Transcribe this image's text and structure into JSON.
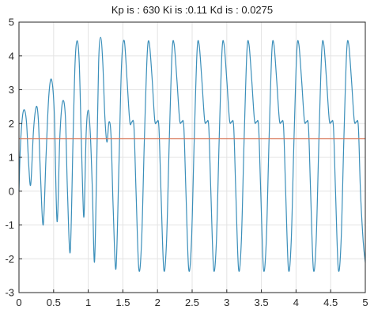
{
  "chart_data": {
    "type": "line",
    "title": "Kp is : 630 Ki is :0.11 Kd is : 0.0275",
    "xlabel": "",
    "ylabel": "",
    "xlim": [
      0,
      5
    ],
    "ylim": [
      -3,
      5
    ],
    "x_ticks": [
      0,
      0.5,
      1,
      1.5,
      2,
      2.5,
      3,
      3.5,
      4,
      4.5,
      5
    ],
    "x_tick_labels": [
      "0",
      "0.5",
      "1",
      "1.5",
      "2",
      "2.5",
      "3",
      "3.5",
      "4",
      "4.5",
      "5"
    ],
    "y_ticks": [
      -3,
      -2,
      -1,
      0,
      1,
      2,
      3,
      4,
      5
    ],
    "y_tick_labels": [
      "-3",
      "-2",
      "-1",
      "0",
      "1",
      "2",
      "3",
      "4",
      "5"
    ],
    "grid": true,
    "legend": "none",
    "series": [
      {
        "color": "#3b8fba",
        "points": [
          [
            0.0,
            0.0
          ],
          [
            0.02,
            1.3
          ],
          [
            0.05,
            2.2
          ],
          [
            0.08,
            2.4
          ],
          [
            0.11,
            2.0
          ],
          [
            0.14,
            0.8
          ],
          [
            0.17,
            0.2
          ],
          [
            0.21,
            1.8
          ],
          [
            0.25,
            2.5
          ],
          [
            0.28,
            2.1
          ],
          [
            0.31,
            0.5
          ],
          [
            0.35,
            -1.0
          ],
          [
            0.39,
            1.0
          ],
          [
            0.43,
            2.8
          ],
          [
            0.47,
            3.3
          ],
          [
            0.51,
            2.3
          ],
          [
            0.55,
            -0.9
          ],
          [
            0.59,
            1.6
          ],
          [
            0.63,
            2.65
          ],
          [
            0.67,
            2.2
          ],
          [
            0.7,
            0.0
          ],
          [
            0.74,
            -1.8
          ],
          [
            0.78,
            1.5
          ],
          [
            0.81,
            3.8
          ],
          [
            0.84,
            4.45
          ],
          [
            0.87,
            3.8
          ],
          [
            0.9,
            1.5
          ],
          [
            0.92,
            0.0
          ],
          [
            0.94,
            -0.7
          ],
          [
            0.97,
            1.7
          ],
          [
            1.0,
            2.4
          ],
          [
            1.03,
            1.7
          ],
          [
            1.06,
            0.0
          ],
          [
            1.09,
            -2.1
          ],
          [
            1.12,
            0.5
          ],
          [
            1.15,
            3.8
          ],
          [
            1.18,
            4.55
          ],
          [
            1.21,
            3.8
          ],
          [
            1.24,
            2.2
          ],
          [
            1.27,
            1.45
          ],
          [
            1.3,
            2.05
          ],
          [
            1.33,
            1.6
          ],
          [
            1.36,
            -0.5
          ],
          [
            1.4,
            -2.3
          ],
          [
            1.44,
            0.5
          ],
          [
            1.48,
            3.7
          ],
          [
            1.52,
            4.45
          ],
          [
            1.56,
            3.3
          ],
          [
            1.6,
            2.05
          ],
          [
            1.63,
            2.05
          ],
          [
            1.66,
            1.9
          ],
          [
            1.69,
            0.0
          ],
          [
            1.73,
            -2.3
          ],
          [
            1.77,
            -1.5
          ],
          [
            1.81,
            1.5
          ],
          [
            1.85,
            4.0
          ],
          [
            1.88,
            4.4
          ],
          [
            1.92,
            3.4
          ],
          [
            1.96,
            2.1
          ],
          [
            1.99,
            2.05
          ],
          [
            2.02,
            1.9
          ],
          [
            2.05,
            0.0
          ],
          [
            2.09,
            -2.3
          ],
          [
            2.13,
            -1.5
          ],
          [
            2.17,
            1.5
          ],
          [
            2.21,
            4.1
          ],
          [
            2.24,
            4.35
          ],
          [
            2.28,
            3.3
          ],
          [
            2.32,
            2.1
          ],
          [
            2.35,
            2.05
          ],
          [
            2.38,
            1.9
          ],
          [
            2.41,
            0.0
          ],
          [
            2.45,
            -2.3
          ],
          [
            2.49,
            -1.5
          ],
          [
            2.53,
            1.5
          ],
          [
            2.57,
            4.1
          ],
          [
            2.6,
            4.35
          ],
          [
            2.64,
            3.3
          ],
          [
            2.68,
            2.1
          ],
          [
            2.71,
            2.05
          ],
          [
            2.74,
            1.9
          ],
          [
            2.77,
            0.0
          ],
          [
            2.81,
            -2.3
          ],
          [
            2.85,
            -1.5
          ],
          [
            2.89,
            1.5
          ],
          [
            2.93,
            4.1
          ],
          [
            2.96,
            4.35
          ],
          [
            3.0,
            3.3
          ],
          [
            3.04,
            2.1
          ],
          [
            3.07,
            2.05
          ],
          [
            3.1,
            1.9
          ],
          [
            3.13,
            0.0
          ],
          [
            3.17,
            -2.3
          ],
          [
            3.21,
            -1.5
          ],
          [
            3.25,
            1.5
          ],
          [
            3.29,
            4.1
          ],
          [
            3.32,
            4.35
          ],
          [
            3.36,
            3.3
          ],
          [
            3.4,
            2.1
          ],
          [
            3.43,
            2.05
          ],
          [
            3.46,
            1.9
          ],
          [
            3.49,
            0.0
          ],
          [
            3.53,
            -2.3
          ],
          [
            3.57,
            -1.5
          ],
          [
            3.61,
            1.5
          ],
          [
            3.65,
            4.1
          ],
          [
            3.68,
            4.35
          ],
          [
            3.72,
            3.3
          ],
          [
            3.76,
            2.1
          ],
          [
            3.79,
            2.05
          ],
          [
            3.82,
            1.9
          ],
          [
            3.85,
            0.0
          ],
          [
            3.89,
            -2.3
          ],
          [
            3.93,
            -1.5
          ],
          [
            3.97,
            1.5
          ],
          [
            4.01,
            4.1
          ],
          [
            4.04,
            4.35
          ],
          [
            4.08,
            3.3
          ],
          [
            4.12,
            2.1
          ],
          [
            4.15,
            2.05
          ],
          [
            4.18,
            1.9
          ],
          [
            4.21,
            0.0
          ],
          [
            4.25,
            -2.3
          ],
          [
            4.29,
            -1.5
          ],
          [
            4.33,
            1.5
          ],
          [
            4.37,
            4.1
          ],
          [
            4.4,
            4.35
          ],
          [
            4.44,
            3.3
          ],
          [
            4.48,
            2.1
          ],
          [
            4.51,
            2.05
          ],
          [
            4.54,
            1.9
          ],
          [
            4.57,
            0.0
          ],
          [
            4.61,
            -2.3
          ],
          [
            4.65,
            -1.5
          ],
          [
            4.69,
            1.5
          ],
          [
            4.73,
            4.1
          ],
          [
            4.76,
            4.35
          ],
          [
            4.8,
            3.3
          ],
          [
            4.84,
            2.1
          ],
          [
            4.87,
            2.05
          ],
          [
            4.9,
            1.9
          ],
          [
            4.93,
            0.0
          ],
          [
            4.97,
            -1.5
          ],
          [
            5.0,
            -2.1
          ]
        ]
      },
      {
        "color": "#d9785a",
        "points": [
          [
            0,
            1.55
          ],
          [
            5,
            1.55
          ]
        ]
      }
    ]
  }
}
